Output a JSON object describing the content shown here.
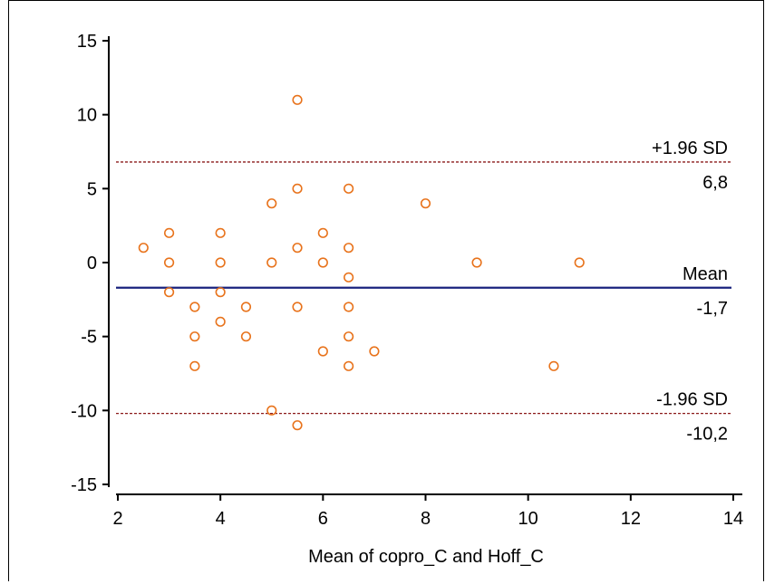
{
  "chart_data": {
    "type": "scatter",
    "title": "",
    "xlabel": "Mean of copro_C and Hoff_C",
    "ylabel": "",
    "xlim": [
      2,
      14
    ],
    "ylim": [
      -15,
      15
    ],
    "xticks": [
      "2",
      "4",
      "6",
      "8",
      "10",
      "12",
      "14"
    ],
    "yticks": [
      "15",
      "10",
      "5",
      "0",
      "-5",
      "-10",
      "-15"
    ],
    "grid": false,
    "points": [
      {
        "x": 2.5,
        "y": 1
      },
      {
        "x": 3,
        "y": 2
      },
      {
        "x": 3,
        "y": 0
      },
      {
        "x": 3,
        "y": -2
      },
      {
        "x": 3.5,
        "y": -3
      },
      {
        "x": 3.5,
        "y": -5
      },
      {
        "x": 3.5,
        "y": -7
      },
      {
        "x": 4,
        "y": 2
      },
      {
        "x": 4,
        "y": 0
      },
      {
        "x": 4,
        "y": -2
      },
      {
        "x": 4,
        "y": -4
      },
      {
        "x": 4.5,
        "y": -3
      },
      {
        "x": 4.5,
        "y": -5
      },
      {
        "x": 5,
        "y": 4
      },
      {
        "x": 5,
        "y": 0
      },
      {
        "x": 5,
        "y": -10
      },
      {
        "x": 5.5,
        "y": 11
      },
      {
        "x": 5.5,
        "y": 5
      },
      {
        "x": 5.5,
        "y": 1
      },
      {
        "x": 5.5,
        "y": -3
      },
      {
        "x": 5.5,
        "y": -11
      },
      {
        "x": 6,
        "y": 2
      },
      {
        "x": 6,
        "y": 0
      },
      {
        "x": 6,
        "y": -6
      },
      {
        "x": 6.5,
        "y": 5
      },
      {
        "x": 6.5,
        "y": 1
      },
      {
        "x": 6.5,
        "y": -1
      },
      {
        "x": 6.5,
        "y": -3
      },
      {
        "x": 6.5,
        "y": -5
      },
      {
        "x": 6.5,
        "y": -7
      },
      {
        "x": 7,
        "y": -6
      },
      {
        "x": 8,
        "y": 4
      },
      {
        "x": 9,
        "y": 0
      },
      {
        "x": 10.5,
        "y": -7
      },
      {
        "x": 11,
        "y": 0
      }
    ],
    "reference_lines": [
      {
        "name": "upper-limit",
        "y": 6.8,
        "label": "+1.96 SD",
        "value_label": "6,8",
        "style": "dashed",
        "color": "#8b1a1a"
      },
      {
        "name": "mean",
        "y": -1.7,
        "label": "Mean",
        "value_label": "-1,7",
        "style": "solid",
        "color": "#1a237e"
      },
      {
        "name": "lower-limit",
        "y": -10.2,
        "label": "-1.96 SD",
        "value_label": "-10,2",
        "style": "dashed",
        "color": "#8b1a1a"
      }
    ],
    "colors": {
      "points": "#e8731c",
      "axes": "#000000"
    }
  }
}
